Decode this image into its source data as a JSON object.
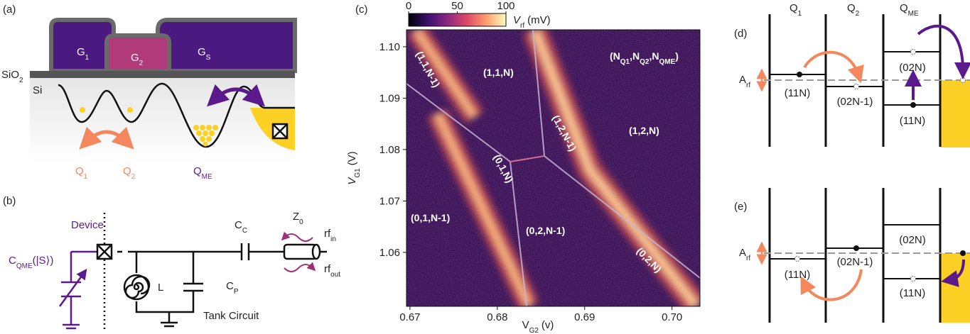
{
  "panel_a": {
    "label": "(a)",
    "gates": [
      {
        "text": "G",
        "sub": "1"
      },
      {
        "text": "G",
        "sub": "2"
      },
      {
        "text": "G",
        "sub": "S"
      }
    ],
    "oxide": {
      "text": "SiO",
      "sub": "2"
    },
    "substrate": "Si",
    "dots": [
      {
        "text": "Q",
        "sub": "1"
      },
      {
        "text": "Q",
        "sub": "2"
      },
      {
        "text": "Q",
        "sub": "ME"
      }
    ]
  },
  "panel_b": {
    "label": "(b)",
    "device": "Device",
    "device_capacitance": {
      "text": "C",
      "sub": "QME",
      "rest": "(|S⟩)"
    },
    "inductor": "L",
    "coupling_capacitor": {
      "text": "C",
      "sub": "C"
    },
    "parasitic_capacitor": {
      "text": "C",
      "sub": "P"
    },
    "impedance": {
      "text": "Z",
      "sub": "0"
    },
    "rf_in": {
      "text": "rf",
      "sub": "in"
    },
    "rf_out": {
      "text": "rf",
      "sub": "out"
    },
    "tank": "Tank Circuit"
  },
  "chart_data": {
    "type": "heatmap",
    "panel_label": "(c)",
    "xlabel": {
      "text": "V",
      "sub": "G2",
      "rest": "(v)"
    },
    "ylabel": {
      "text": "V",
      "sub": "G1",
      "rest": "(V)"
    },
    "xlim": [
      0.6696,
      0.7032
    ],
    "xticks": [
      0.67,
      0.68,
      0.69,
      {
        "value": 0.7,
        "label": "0.70"
      }
    ],
    "ylim": [
      1.0495,
      1.1033
    ],
    "yticks": [
      1.06,
      1.07,
      1.08,
      1.09,
      {
        "value": 1.1,
        "label": "1.10"
      }
    ],
    "colorbar": {
      "lim": [
        0,
        100
      ],
      "ticks": [
        0,
        50,
        100
      ],
      "label": {
        "text": "V",
        "sub": "rf",
        "rest": "(mV)"
      }
    },
    "colormap": [
      "#000004",
      "#3b0f70",
      "#8c2981",
      "#de4968",
      "#fe9f6d",
      "#fcfdbf"
    ],
    "legend_label": {
      "parts": [
        "(N",
        ",N",
        ",N",
        ")"
      ],
      "subs": [
        "Q1",
        "Q2",
        "QME"
      ]
    },
    "regions": [
      "(1,1,N-1)",
      "(1,1,N)",
      "(1,2,N-1)",
      "(1,2,N)",
      "(0,1,N)",
      "(0,1,N-1)",
      "(0,2,N-1)",
      "(0,2,N)"
    ]
  },
  "panel_d": {
    "label": "(d)",
    "columns": [
      {
        "text": "Q",
        "sub": "1"
      },
      {
        "text": "Q",
        "sub": "2"
      },
      {
        "text": "Q",
        "sub": "ME"
      }
    ],
    "amplitude": {
      "text": "A",
      "sub": "rf"
    },
    "levels": [
      "(11N)",
      "(02N-1)",
      "(02N)",
      "(11N)"
    ]
  },
  "panel_e": {
    "label": "(e)",
    "amplitude": {
      "text": "A",
      "sub": "rf"
    },
    "levels": [
      "(02N)",
      "(11N)",
      "(02N-1)",
      "(11N)"
    ]
  }
}
